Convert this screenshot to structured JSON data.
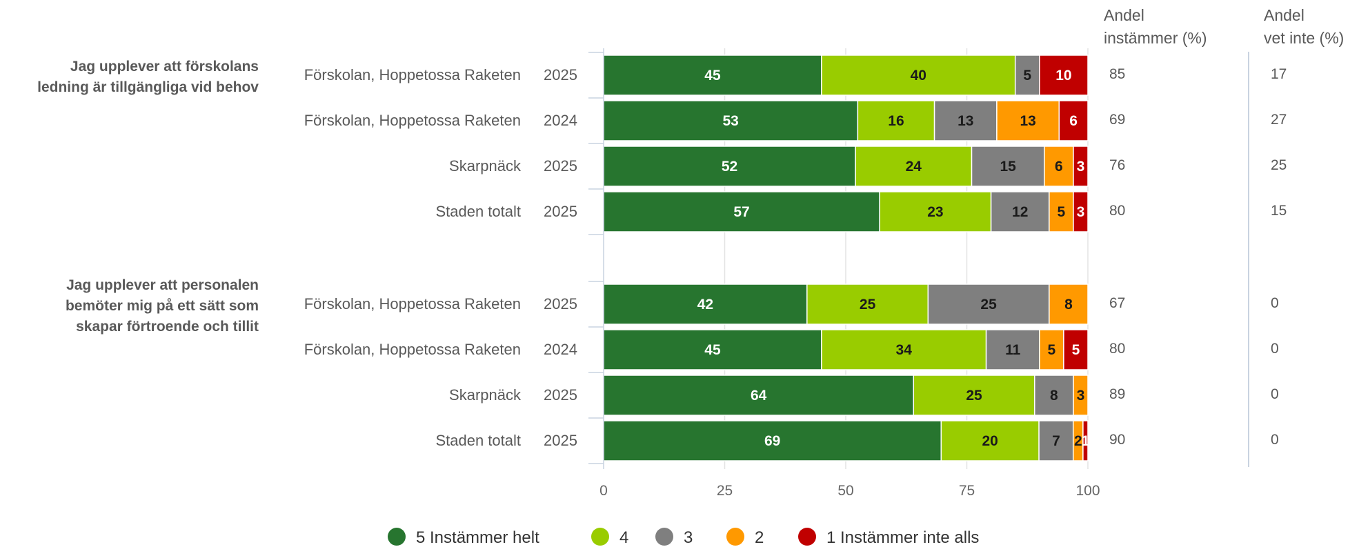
{
  "chart_data": {
    "type": "bar",
    "orientation": "horizontal",
    "stacked": true,
    "xlim": [
      0,
      100
    ],
    "x_ticks": [
      "0",
      "25",
      "50",
      "75",
      "100"
    ],
    "legend_position": "bottom",
    "grid": true,
    "series": [
      {
        "name": "5 Instämmer helt",
        "color": "#27752f"
      },
      {
        "name": "4",
        "color": "#99cc00"
      },
      {
        "name": "3",
        "color": "#7f7f7f"
      },
      {
        "name": "2",
        "color": "#ff9900"
      },
      {
        "name": "1 Instämmer inte alls",
        "color": "#c00000"
      }
    ],
    "column_headers": {
      "agree": [
        "Andel",
        "instämmer (%)"
      ],
      "dontknow": [
        "Andel",
        "vet inte (%)"
      ]
    },
    "groups": [
      {
        "question": [
          "Jag upplever att förskolans",
          "ledning är tillgängliga vid behov"
        ],
        "rows": [
          {
            "category": "Förskolan, Hoppetossa Raketen",
            "year": "2025",
            "values": [
              45,
              40,
              5,
              0,
              10
            ],
            "labels": [
              "45",
              "40",
              "5",
              "0",
              "10"
            ],
            "agree": "85",
            "dontknow": "17"
          },
          {
            "category": "Förskolan, Hoppetossa Raketen",
            "year": "2024",
            "values": [
              53,
              16,
              13,
              13,
              6
            ],
            "labels": [
              "53",
              "16",
              "13",
              "13",
              "6"
            ],
            "agree": "69",
            "dontknow": "27"
          },
          {
            "category": "Skarpnäck",
            "year": "2025",
            "values": [
              52,
              24,
              15,
              6,
              3
            ],
            "labels": [
              "52",
              "24",
              "15",
              "6",
              "3"
            ],
            "agree": "76",
            "dontknow": "25"
          },
          {
            "category": "Staden totalt",
            "year": "2025",
            "values": [
              57,
              23,
              12,
              5,
              3
            ],
            "labels": [
              "57",
              "23",
              "12",
              "5",
              "3"
            ],
            "agree": "80",
            "dontknow": "15"
          }
        ]
      },
      {
        "question": [
          "Jag upplever att personalen",
          "bemöter mig på ett sätt som",
          "skapar förtroende och tillit"
        ],
        "rows": [
          {
            "category": "Förskolan, Hoppetossa Raketen",
            "year": "2025",
            "values": [
              42,
              25,
              25,
              8,
              0
            ],
            "labels": [
              "42",
              "25",
              "25",
              "8",
              "0"
            ],
            "agree": "67",
            "dontknow": "0"
          },
          {
            "category": "Förskolan, Hoppetossa Raketen",
            "year": "2024",
            "values": [
              45,
              34,
              11,
              5,
              5
            ],
            "labels": [
              "45",
              "34",
              "11",
              "5",
              "5"
            ],
            "agree": "80",
            "dontknow": "0"
          },
          {
            "category": "Skarpnäck",
            "year": "2025",
            "values": [
              64,
              25,
              8,
              3,
              0
            ],
            "labels": [
              "64",
              "25",
              "8",
              "3",
              "0"
            ],
            "agree": "89",
            "dontknow": "0"
          },
          {
            "category": "Staden totalt",
            "year": "2025",
            "values": [
              69,
              20,
              7,
              2,
              1
            ],
            "labels": [
              "69",
              "20",
              "7",
              "2",
              "1"
            ],
            "agree": "90",
            "dontknow": "0"
          }
        ]
      }
    ]
  }
}
